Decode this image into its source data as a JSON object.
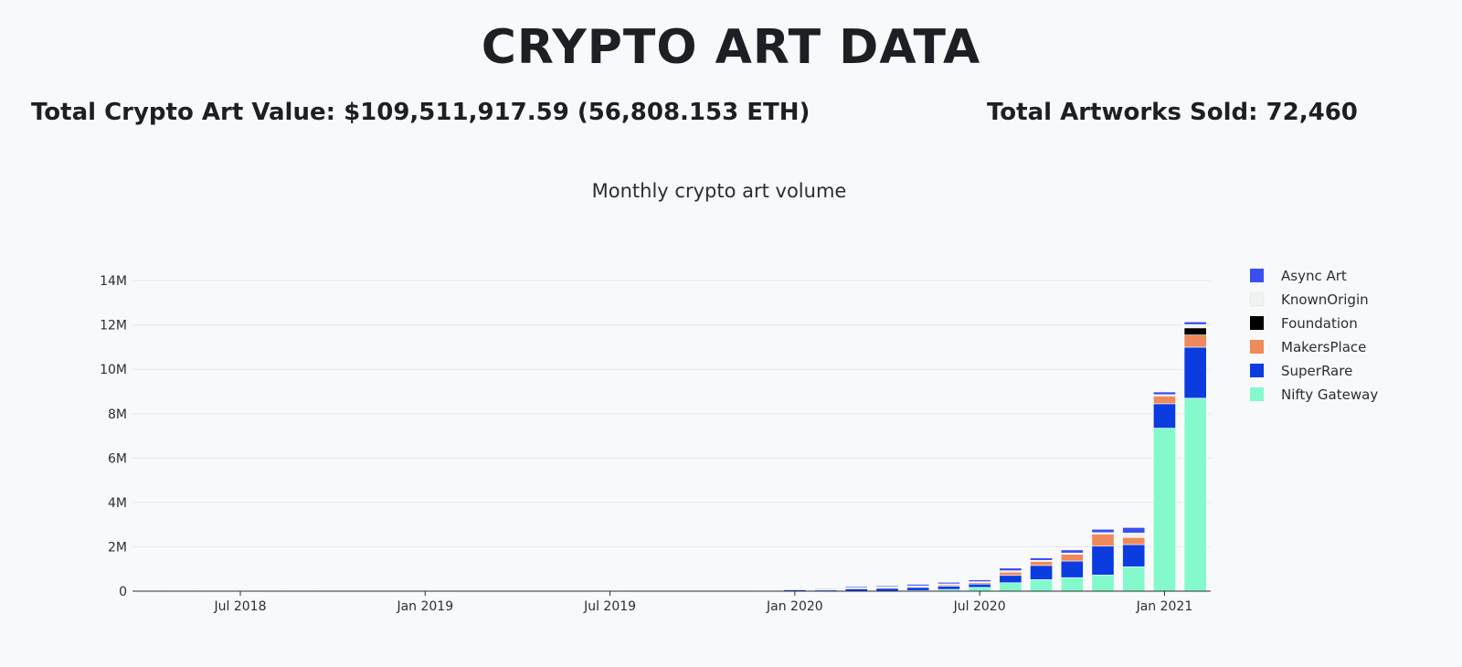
{
  "header": {
    "title": "CRYPTO ART DATA",
    "total_value": "Total Crypto Art Value: $109,511,917.59 (56,808.153 ETH)",
    "total_sold": "Total Artworks Sold: 72,460"
  },
  "chart_data": {
    "type": "bar",
    "stacked": true,
    "title": "Monthly crypto art volume",
    "xlabel": "",
    "ylabel": "",
    "ylim": [
      0,
      14500000
    ],
    "yticks": [
      0,
      2000000,
      4000000,
      6000000,
      8000000,
      10000000,
      12000000,
      14000000
    ],
    "ytick_labels": [
      "0",
      "2M",
      "4M",
      "6M",
      "8M",
      "10M",
      "12M",
      "14M"
    ],
    "xtick_labels": [
      {
        "label": "Jul 2018",
        "at": "2018-07"
      },
      {
        "label": "Jan 2019",
        "at": "2019-01"
      },
      {
        "label": "Jul 2019",
        "at": "2019-07"
      },
      {
        "label": "Jan 2020",
        "at": "2020-01"
      },
      {
        "label": "Jul 2020",
        "at": "2020-07"
      },
      {
        "label": "Jan 2021",
        "at": "2021-01"
      }
    ],
    "grid": true,
    "legend_position": "right",
    "categories": [
      "2018-04",
      "2018-05",
      "2018-06",
      "2018-07",
      "2018-08",
      "2018-09",
      "2018-10",
      "2018-11",
      "2018-12",
      "2019-01",
      "2019-02",
      "2019-03",
      "2019-04",
      "2019-05",
      "2019-06",
      "2019-07",
      "2019-08",
      "2019-09",
      "2019-10",
      "2019-11",
      "2019-12",
      "2020-01",
      "2020-02",
      "2020-03",
      "2020-04",
      "2020-05",
      "2020-06",
      "2020-07",
      "2020-08",
      "2020-09",
      "2020-10",
      "2020-11",
      "2020-12",
      "2021-01",
      "2021-02"
    ],
    "series": [
      {
        "name": "Nifty Gateway",
        "color": "#83f9cc",
        "values": [
          0,
          0,
          0,
          0,
          0,
          0,
          0,
          0,
          0,
          0,
          0,
          0,
          0,
          0,
          0,
          0,
          0,
          0,
          0,
          0,
          0,
          0,
          0,
          0,
          0,
          30000,
          80000,
          170000,
          380000,
          520000,
          610000,
          730000,
          1100000,
          7350000,
          8700000
        ]
      },
      {
        "name": "SuperRare",
        "color": "#0a3ce0",
        "values": [
          20000,
          20000,
          20000,
          20000,
          15000,
          20000,
          5000,
          5000,
          5000,
          5000,
          5000,
          5000,
          5000,
          5000,
          5000,
          5000,
          5000,
          5000,
          5000,
          5000,
          30000,
          60000,
          60000,
          110000,
          130000,
          140000,
          150000,
          150000,
          330000,
          640000,
          750000,
          1300000,
          1000000,
          1100000,
          2300000
        ]
      },
      {
        "name": "MakersPlace",
        "color": "#ef8a5b",
        "values": [
          0,
          0,
          0,
          0,
          0,
          0,
          0,
          0,
          0,
          0,
          0,
          0,
          0,
          0,
          0,
          20000,
          0,
          0,
          0,
          0,
          0,
          0,
          20000,
          30000,
          30000,
          40000,
          60000,
          60000,
          150000,
          180000,
          300000,
          550000,
          320000,
          350000,
          550000
        ]
      },
      {
        "name": "Foundation",
        "color": "#000000",
        "values": [
          0,
          0,
          0,
          0,
          0,
          0,
          0,
          0,
          0,
          0,
          0,
          0,
          0,
          0,
          0,
          0,
          0,
          0,
          0,
          0,
          0,
          0,
          0,
          0,
          0,
          0,
          0,
          0,
          0,
          0,
          0,
          0,
          0,
          0,
          320000
        ]
      },
      {
        "name": "KnownOrigin",
        "color": "#f0f2ef",
        "values": [
          0,
          0,
          0,
          0,
          0,
          0,
          0,
          0,
          0,
          0,
          0,
          0,
          0,
          0,
          0,
          0,
          0,
          0,
          0,
          0,
          0,
          0,
          10000,
          20000,
          30000,
          30000,
          40000,
          50000,
          60000,
          50000,
          60000,
          60000,
          200000,
          60000,
          150000
        ]
      },
      {
        "name": "Async Art",
        "color": "#3b4ff2",
        "values": [
          0,
          0,
          0,
          0,
          0,
          0,
          0,
          0,
          0,
          0,
          0,
          0,
          0,
          0,
          0,
          0,
          0,
          0,
          0,
          0,
          0,
          0,
          20000,
          50000,
          50000,
          70000,
          70000,
          80000,
          120000,
          110000,
          140000,
          150000,
          250000,
          120000,
          120000
        ]
      }
    ]
  }
}
